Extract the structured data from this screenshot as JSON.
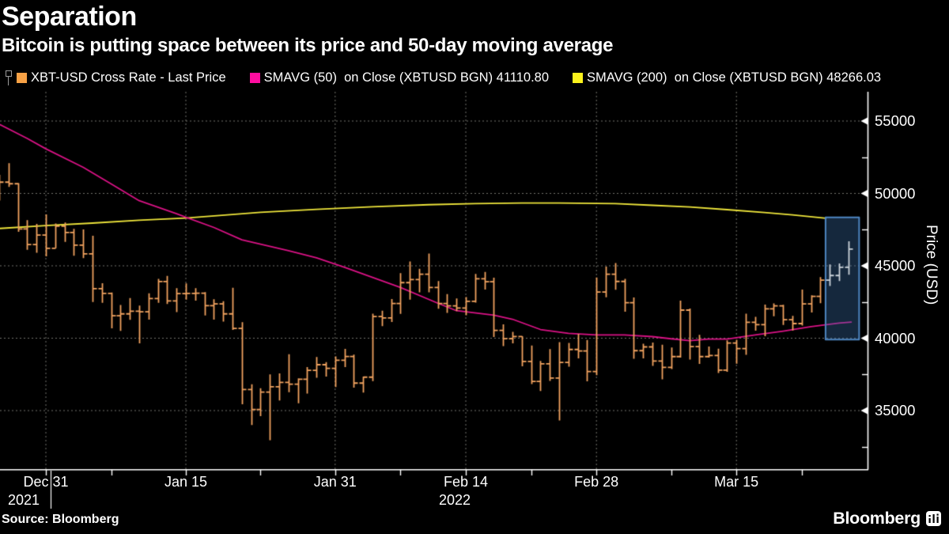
{
  "header": {
    "title": "Separation",
    "subtitle": "Bitcoin is putting space between its price and 50-day moving average"
  },
  "legend": {
    "items": [
      {
        "label": "XBT-USD Cross Rate - Last Price",
        "swatch": "#f7a145"
      },
      {
        "label": "SMAVG (50)  on Close (XBTUSD BGN) 41110.80",
        "swatch": "#ff0da0"
      },
      {
        "label": "SMAVG (200)  on Close (XBTUSD BGN) 48266.03",
        "swatch": "#fbf21c"
      }
    ]
  },
  "footer": {
    "source": "Source: Bloomberg",
    "brand": "Bloomberg"
  },
  "y_axis": {
    "title": "Price (USD)",
    "major_ticks": [
      55000,
      50000,
      45000,
      40000,
      35000
    ],
    "minor_ticks": [
      52500,
      47500,
      42500,
      37500,
      32500
    ]
  },
  "x_axis": {
    "major_ticks": [
      {
        "label": "Dec 31",
        "day": 5
      },
      {
        "label": "Jan 15",
        "day": 20
      },
      {
        "label": "Jan 31",
        "day": 36
      },
      {
        "label": "Feb 14",
        "day": 50
      },
      {
        "label": "Feb 28",
        "day": 64
      },
      {
        "label": "Mar 15",
        "day": 79
      }
    ],
    "minor_tick_days": [
      12,
      28,
      43,
      57,
      72,
      86
    ],
    "years": [
      {
        "label": "2021",
        "day": null
      },
      {
        "label": "2022",
        "day": 50
      }
    ],
    "year_break_day": 5.5
  },
  "chart_data": {
    "type": "ohlc",
    "title": "Separation",
    "instrument": "XBT-USD Cross Rate",
    "start_date": "2021-12-26",
    "ylabel": "Price (USD)",
    "ylim_labeled": [
      35000,
      55000
    ],
    "grid": "dotted",
    "legend_position": "top",
    "sma50_last": 41110.8,
    "sma200_last": 48266.03,
    "ohlc": [
      [
        "Dec 26",
        50810,
        51280,
        49510,
        50780
      ],
      [
        "Dec 27",
        50780,
        52090,
        50450,
        50670
      ],
      [
        "Dec 28",
        50670,
        50710,
        47350,
        47550
      ],
      [
        "Dec 29",
        47550,
        48150,
        46100,
        46470
      ],
      [
        "Dec 30",
        46470,
        47900,
        45900,
        47120
      ],
      [
        "Dec 31",
        47120,
        48550,
        45650,
        46210
      ],
      [
        "Jan 1",
        46210,
        47920,
        46210,
        47740
      ],
      [
        "Jan 2",
        47740,
        47990,
        46650,
        47300
      ],
      [
        "Jan 3",
        47300,
        47560,
        45700,
        46430
      ],
      [
        "Jan 4",
        46430,
        47510,
        45530,
        45830
      ],
      [
        "Jan 5",
        45830,
        47070,
        42500,
        43420
      ],
      [
        "Jan 6",
        43420,
        43800,
        42450,
        43090
      ],
      [
        "Jan 7",
        43090,
        43150,
        40680,
        41550
      ],
      [
        "Jan 8",
        41550,
        42300,
        40500,
        41680
      ],
      [
        "Jan 9",
        41680,
        42780,
        41270,
        41860
      ],
      [
        "Jan 10",
        41860,
        42250,
        39650,
        41820
      ],
      [
        "Jan 11",
        41820,
        43100,
        41280,
        42740
      ],
      [
        "Jan 12",
        42740,
        44100,
        42450,
        43910
      ],
      [
        "Jan 13",
        43910,
        44300,
        42360,
        42580
      ],
      [
        "Jan 14",
        42580,
        43450,
        41810,
        43080
      ],
      [
        "Jan 15",
        43080,
        43790,
        42670,
        43090
      ],
      [
        "Jan 16",
        43090,
        43450,
        42600,
        43110
      ],
      [
        "Jan 17",
        43110,
        43180,
        41570,
        42250
      ],
      [
        "Jan 18",
        42250,
        42690,
        41290,
        42370
      ],
      [
        "Jan 19",
        42370,
        42560,
        41150,
        41680
      ],
      [
        "Jan 20",
        41680,
        43480,
        40570,
        40680
      ],
      [
        "Jan 21",
        40680,
        41100,
        35440,
        36450
      ],
      [
        "Jan 22",
        36450,
        36820,
        34000,
        35080
      ],
      [
        "Jan 23",
        35080,
        36540,
        34620,
        36280
      ],
      [
        "Jan 24",
        36280,
        37500,
        32950,
        36650
      ],
      [
        "Jan 25",
        36650,
        37570,
        35700,
        36950
      ],
      [
        "Jan 26",
        36950,
        38900,
        36270,
        36820
      ],
      [
        "Jan 27",
        36820,
        37230,
        35510,
        37160
      ],
      [
        "Jan 28",
        37160,
        38000,
        36180,
        37780
      ],
      [
        "Jan 29",
        37780,
        38700,
        37270,
        38170
      ],
      [
        "Jan 30",
        38170,
        38350,
        37350,
        37920
      ],
      [
        "Jan 31",
        37920,
        38740,
        36630,
        38480
      ],
      [
        "Feb 1",
        38480,
        39260,
        38010,
        38740
      ],
      [
        "Feb 2",
        38740,
        38860,
        36580,
        36900
      ],
      [
        "Feb 3",
        36900,
        37350,
        36250,
        37310
      ],
      [
        "Feb 4",
        37310,
        41700,
        37030,
        41500
      ],
      [
        "Feb 5",
        41500,
        41900,
        40830,
        41400
      ],
      [
        "Feb 6",
        41400,
        42700,
        41120,
        42400
      ],
      [
        "Feb 7",
        42400,
        44500,
        41680,
        43840
      ],
      [
        "Feb 8",
        43840,
        45300,
        42670,
        44050
      ],
      [
        "Feb 9",
        44050,
        44800,
        43170,
        44420
      ],
      [
        "Feb 10",
        44420,
        45850,
        43170,
        43500
      ],
      [
        "Feb 11",
        43500,
        43950,
        42040,
        42400
      ],
      [
        "Feb 12",
        42400,
        43050,
        41750,
        42230
      ],
      [
        "Feb 13",
        42230,
        42750,
        41870,
        42080
      ],
      [
        "Feb 14",
        42080,
        42840,
        41580,
        42550
      ],
      [
        "Feb 15",
        42550,
        44440,
        42460,
        44100
      ],
      [
        "Feb 16",
        44100,
        44580,
        43360,
        43900
      ],
      [
        "Feb 17",
        43900,
        44180,
        40080,
        40540
      ],
      [
        "Feb 18",
        40540,
        40960,
        39450,
        39970
      ],
      [
        "Feb 19",
        39970,
        40440,
        39640,
        40120
      ],
      [
        "Feb 20",
        40120,
        40130,
        38060,
        38390
      ],
      [
        "Feb 21",
        38390,
        39500,
        36830,
        37020
      ],
      [
        "Feb 22",
        37020,
        38430,
        36350,
        38230
      ],
      [
        "Feb 23",
        38230,
        39250,
        37050,
        37250
      ],
      [
        "Feb 24",
        37250,
        39720,
        34320,
        38330
      ],
      [
        "Feb 25",
        38330,
        39670,
        38030,
        39220
      ],
      [
        "Feb 26",
        39220,
        40300,
        38600,
        39120
      ],
      [
        "Feb 27",
        39120,
        39880,
        37020,
        37700
      ],
      [
        "Feb 28",
        37700,
        44200,
        37450,
        43190
      ],
      [
        "Mar 1",
        43190,
        44950,
        42830,
        44420
      ],
      [
        "Mar 2",
        44420,
        45190,
        43350,
        43920
      ],
      [
        "Mar 3",
        43920,
        44100,
        41830,
        42450
      ],
      [
        "Mar 4",
        42450,
        42810,
        38580,
        39140
      ],
      [
        "Mar 5",
        39140,
        39620,
        38600,
        39400
      ],
      [
        "Mar 6",
        39400,
        39700,
        38090,
        38420
      ],
      [
        "Mar 7",
        38420,
        39550,
        37160,
        37990
      ],
      [
        "Mar 8",
        37990,
        39360,
        37870,
        38730
      ],
      [
        "Mar 9",
        38730,
        42590,
        38660,
        41940
      ],
      [
        "Mar 10",
        41940,
        42050,
        38530,
        39420
      ],
      [
        "Mar 11",
        39420,
        40230,
        38230,
        38730
      ],
      [
        "Mar 12",
        38730,
        39420,
        38660,
        38810
      ],
      [
        "Mar 13",
        38810,
        39280,
        37600,
        37790
      ],
      [
        "Mar 14",
        37790,
        39850,
        37680,
        39670
      ],
      [
        "Mar 15",
        39670,
        39890,
        38240,
        39280
      ],
      [
        "Mar 16",
        39280,
        41690,
        38850,
        41100
      ],
      [
        "Mar 17",
        41100,
        41480,
        40520,
        40940
      ],
      [
        "Mar 18",
        40940,
        42320,
        40140,
        42030
      ],
      [
        "Mar 19",
        42030,
        42400,
        41520,
        42230
      ],
      [
        "Mar 20",
        42230,
        42310,
        40910,
        41280
      ],
      [
        "Mar 21",
        41280,
        41550,
        40530,
        41010
      ],
      [
        "Mar 22",
        41010,
        43360,
        40870,
        42370
      ],
      [
        "Mar 23",
        42370,
        42960,
        41770,
        42890
      ],
      [
        "Mar 24",
        42890,
        44220,
        42420,
        44010
      ],
      [
        "Mar 25",
        44010,
        45090,
        43600,
        44330
      ],
      [
        "Mar 26",
        44330,
        45160,
        43950,
        44900
      ],
      [
        "Mar 27",
        44900,
        46700,
        44390,
        46150
      ]
    ],
    "highlight_from": 89,
    "sma50": [
      [
        0,
        54780
      ],
      [
        3,
        53800
      ],
      [
        5,
        53080
      ],
      [
        9,
        51800
      ],
      [
        12,
        50660
      ],
      [
        15,
        49500
      ],
      [
        19,
        48600
      ],
      [
        20,
        48350
      ],
      [
        23,
        47650
      ],
      [
        26,
        46800
      ],
      [
        31,
        46040
      ],
      [
        34,
        45550
      ],
      [
        37,
        44900
      ],
      [
        40,
        44200
      ],
      [
        43,
        43500
      ],
      [
        47,
        42420
      ],
      [
        49,
        41900
      ],
      [
        53,
        41590
      ],
      [
        55,
        41310
      ],
      [
        58,
        40600
      ],
      [
        61,
        40330
      ],
      [
        64,
        40220
      ],
      [
        67,
        40220
      ],
      [
        70,
        40110
      ],
      [
        72,
        39960
      ],
      [
        74,
        39830
      ],
      [
        76,
        39940
      ],
      [
        78,
        39940
      ],
      [
        81,
        40220
      ],
      [
        84,
        40490
      ],
      [
        87,
        40800
      ],
      [
        90,
        41040
      ],
      [
        91.3,
        41110
      ]
    ],
    "sma200": [
      [
        0,
        47580
      ],
      [
        5,
        47780
      ],
      [
        10,
        47950
      ],
      [
        15,
        48150
      ],
      [
        20,
        48300
      ],
      [
        25,
        48550
      ],
      [
        28,
        48700
      ],
      [
        34,
        48900
      ],
      [
        40,
        49080
      ],
      [
        46,
        49220
      ],
      [
        51,
        49300
      ],
      [
        56,
        49340
      ],
      [
        60,
        49340
      ],
      [
        66,
        49300
      ],
      [
        70,
        49180
      ],
      [
        74,
        49060
      ],
      [
        78,
        48880
      ],
      [
        82,
        48680
      ],
      [
        85,
        48520
      ],
      [
        88.6,
        48290
      ]
    ],
    "highlight_box": {
      "day_start": 88.55,
      "day_end": 92.15,
      "price_top": 48350,
      "price_bottom": 39900
    },
    "colors": {
      "bars": "#f0a25f",
      "bars_highlight": "#ccd3da",
      "sma50": "#d91285",
      "sma200": "#eee53b",
      "box_fill": "rgba(62,118,180,0.34)",
      "box_border": "#4e86c2",
      "grid": "#73736c",
      "axis": "#ffffff"
    }
  }
}
